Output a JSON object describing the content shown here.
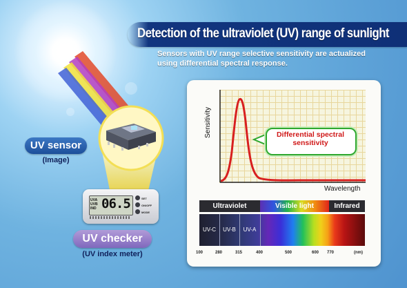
{
  "title": "Detection of the ultraviolet (UV) range of sunlight",
  "subtitle_lines": [
    "Sensors with UV range selective sensitivity are actualized",
    "using differential spectral response."
  ],
  "uv_sensor": {
    "label": "UV sensor",
    "caption": "(Image)"
  },
  "uv_checker": {
    "label": "UV checker",
    "caption": "(UV index meter)"
  },
  "device": {
    "display_value": "06.5",
    "display_prefix": [
      "UVA",
      "UVB",
      "IND"
    ],
    "buttons": [
      "SET",
      "ON/OFF",
      "MODE"
    ]
  },
  "graph": {
    "y_axis_label": "Sensitivity",
    "x_axis_label": "Wavelength",
    "callout": [
      "Differential spectral",
      "sensitivity"
    ]
  },
  "spectrum": {
    "bands": [
      "Ultraviolet",
      "Visible light",
      "Infrared"
    ],
    "uv_sub_bands": [
      "UV-C",
      "UV-B",
      "UV-A"
    ],
    "ticks": [
      "100",
      "280",
      "315",
      "400",
      "500",
      "600",
      "770",
      "(nm)"
    ]
  },
  "colors": {
    "title_bar": "#12357f",
    "curve": "#d81f1f",
    "callout_border": "#2fa82f",
    "callout_text": "#d01818",
    "uv_sensor_pill": "#2a62b0",
    "uv_checker_pill": "#9a84cc"
  }
}
